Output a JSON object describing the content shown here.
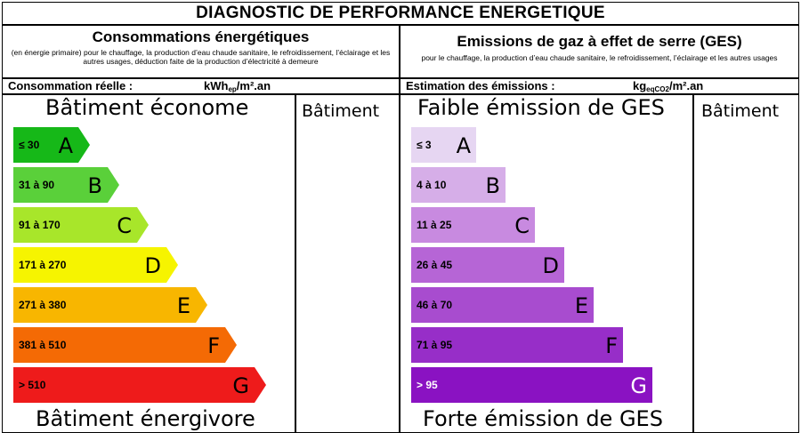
{
  "title": "DIAGNOSTIC DE PERFORMANCE ENERGETIQUE",
  "energy": {
    "heading": "Consommations énergétiques",
    "subheading": "(en énergie primaire) pour le chauffage, la production d’eau chaude sanitaire, le refroidissement, l’éclairage et les autres usages, déduction faite de la production d’électricité à demeure",
    "measure_label": "Consommation réelle :",
    "unit_main": "kWh",
    "unit_sub": "ep",
    "unit_tail": "/m².an",
    "top_label": "Bâtiment économe",
    "bottom_label": "Bâtiment énergivore",
    "side_label": "Bâtiment",
    "classes": [
      {
        "range": "≤ 30",
        "letter": "A",
        "color": "#16b818"
      },
      {
        "range": "31 à 90",
        "letter": "B",
        "color": "#5ad03a"
      },
      {
        "range": "91 à 170",
        "letter": "C",
        "color": "#a8e62a"
      },
      {
        "range": "171 à 270",
        "letter": "D",
        "color": "#f6f400"
      },
      {
        "range": "271 à 380",
        "letter": "E",
        "color": "#f8b600"
      },
      {
        "range": "381 à 510",
        "letter": "F",
        "color": "#f46a05"
      },
      {
        "range": "> 510",
        "letter": "G",
        "color": "#ee1b1b"
      }
    ]
  },
  "ges": {
    "heading": "Emissions de gaz à effet de serre (GES)",
    "subheading": "pour le chauffage, la production d’eau chaude sanitaire, le refroidissement, l’éclairage et les autres usages",
    "measure_label": "Estimation des émissions :",
    "unit_main": "kg",
    "unit_sub": "eqCO2",
    "unit_tail": "/m².an",
    "top_label": "Faible émission de GES",
    "bottom_label": "Forte émission de GES",
    "side_label": "Bâtiment",
    "classes": [
      {
        "range": "≤ 3",
        "letter": "A",
        "color": "#e6d6f2",
        "text_color": "#000000"
      },
      {
        "range": "4 à 10",
        "letter": "B",
        "color": "#d6aee8",
        "text_color": "#000000"
      },
      {
        "range": "11 à 25",
        "letter": "C",
        "color": "#c88ae0",
        "text_color": "#000000"
      },
      {
        "range": "26 à 45",
        "letter": "D",
        "color": "#b665d6",
        "text_color": "#000000"
      },
      {
        "range": "46 à 70",
        "letter": "E",
        "color": "#a84ccf",
        "text_color": "#000000"
      },
      {
        "range": "71 à 95",
        "letter": "F",
        "color": "#972ec8",
        "text_color": "#000000"
      },
      {
        "range": "> 95",
        "letter": "G",
        "color": "#8a12c2",
        "text_color": "#ffffff"
      }
    ]
  }
}
